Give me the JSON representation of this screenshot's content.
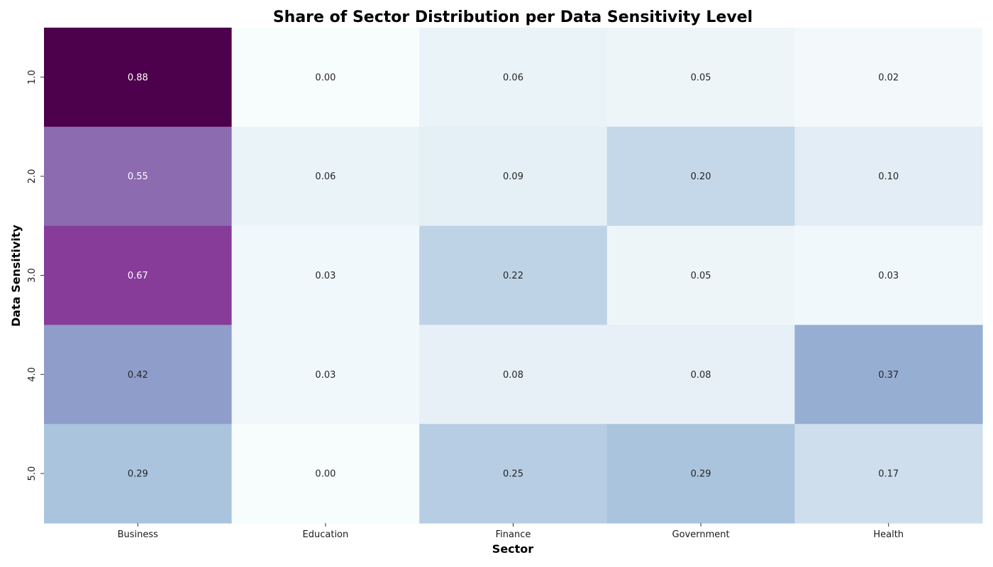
{
  "chart_data": {
    "type": "heatmap",
    "title": "Share of Sector Distribution per Data Sensitivity Level",
    "xlabel": "Sector",
    "ylabel": "Data Sensitivity",
    "x_categories": [
      "Business",
      "Education",
      "Finance",
      "Government",
      "Health"
    ],
    "y_categories": [
      "1.0",
      "2.0",
      "3.0",
      "4.0",
      "5.0"
    ],
    "values": [
      [
        0.88,
        0.0,
        0.06,
        0.05,
        0.02
      ],
      [
        0.55,
        0.06,
        0.09,
        0.2,
        0.1
      ],
      [
        0.67,
        0.03,
        0.22,
        0.05,
        0.03
      ],
      [
        0.42,
        0.03,
        0.08,
        0.08,
        0.37
      ],
      [
        0.29,
        0.0,
        0.25,
        0.29,
        0.17
      ]
    ],
    "value_format": "0.00",
    "colormap": "BuPu",
    "colorbar": false,
    "vmin": 0.0,
    "vmax": 0.88,
    "grid": false
  }
}
